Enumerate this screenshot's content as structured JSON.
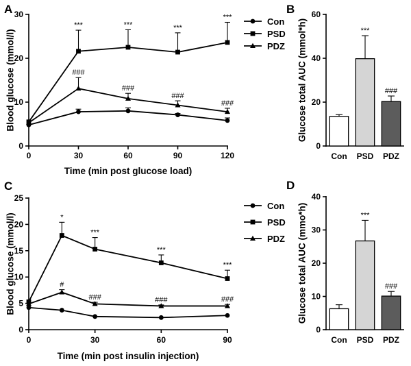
{
  "chart_data": [
    {
      "panel": "A",
      "type": "line",
      "xlabel": "Time (min post glucose load)",
      "ylabel": "Blood glucose (mmol/l)",
      "x": [
        0,
        30,
        60,
        90,
        120
      ],
      "xticks": [
        "0",
        "30",
        "60",
        "90",
        "120"
      ],
      "ylim": [
        0,
        30
      ],
      "yticks": [
        "0",
        "10",
        "20",
        "30"
      ],
      "series": [
        {
          "name": "Con",
          "marker": "circle",
          "values": [
            4.8,
            7.8,
            8.0,
            7.1,
            5.8
          ],
          "errors": [
            0,
            0.6,
            0.7,
            0.3,
            0.6
          ],
          "annotations": [
            "",
            "",
            "",
            "",
            ""
          ]
        },
        {
          "name": "PSD",
          "marker": "square",
          "values": [
            5.5,
            21.6,
            22.5,
            21.4,
            23.6
          ],
          "errors": [
            0,
            4.8,
            4.0,
            4.4,
            4.6
          ],
          "annotations": [
            "",
            "***",
            "***",
            "***",
            "***"
          ]
        },
        {
          "name": "PDZ",
          "marker": "triangle",
          "values": [
            5.3,
            13.1,
            10.8,
            9.3,
            7.8
          ],
          "errors": [
            0,
            2.5,
            1.2,
            1.0,
            0.8
          ],
          "annotations": [
            "",
            "###",
            "###",
            "###",
            "###"
          ]
        }
      ],
      "legend": [
        "Con",
        "PSD",
        "PDZ"
      ]
    },
    {
      "panel": "B",
      "type": "bar",
      "ylabel": "Glucose total AUC (mmol*h)",
      "categories": [
        "Con",
        "PSD",
        "PDZ"
      ],
      "values": [
        13.5,
        39.8,
        20.3
      ],
      "errors": [
        0.8,
        10.5,
        2.5
      ],
      "annotations": [
        "",
        "***",
        "###"
      ],
      "colors": [
        "#ffffff",
        "#d5d5d5",
        "#5c5c5c"
      ],
      "ylim": [
        0,
        60
      ],
      "yticks": [
        "0",
        "20",
        "40",
        "60"
      ]
    },
    {
      "panel": "C",
      "type": "line",
      "xlabel": "Time (min post insulin injection)",
      "ylabel": "Blood glucose (mmol/l)",
      "x": [
        0,
        15,
        30,
        60,
        90
      ],
      "xticks": [
        "0",
        "30",
        "60",
        "90"
      ],
      "xtick_values": [
        0,
        30,
        60,
        90
      ],
      "ylim": [
        0,
        25
      ],
      "yticks": [
        "0",
        "5",
        "10",
        "15",
        "20",
        "25"
      ],
      "series": [
        {
          "name": "Con",
          "marker": "circle",
          "values": [
            4.2,
            3.7,
            2.5,
            2.3,
            2.7
          ],
          "errors": [
            0,
            0,
            0,
            0,
            0
          ],
          "annotations": [
            "",
            "",
            "",
            "",
            ""
          ]
        },
        {
          "name": "PSD",
          "marker": "square",
          "values": [
            5.3,
            17.9,
            15.3,
            12.7,
            9.7
          ],
          "errors": [
            0,
            2.5,
            2.2,
            1.5,
            1.6
          ],
          "annotations": [
            "",
            "*",
            "***",
            "***",
            "***"
          ]
        },
        {
          "name": "PDZ",
          "marker": "triangle",
          "values": [
            4.9,
            7.1,
            4.9,
            4.5,
            4.5
          ],
          "errors": [
            0,
            0.5,
            0.3,
            0.2,
            0.3
          ],
          "annotations": [
            "",
            "#",
            "###",
            "###",
            "###"
          ]
        }
      ],
      "legend": [
        "Con",
        "PSD",
        "PDZ"
      ]
    },
    {
      "panel": "D",
      "type": "bar",
      "ylabel": "Glucose total AUC (mmo*h)",
      "categories": [
        "Con",
        "PSD",
        "PDZ"
      ],
      "values": [
        6.3,
        26.7,
        10.1
      ],
      "errors": [
        1.2,
        6.2,
        1.4
      ],
      "annotations": [
        "",
        "***",
        "###"
      ],
      "colors": [
        "#ffffff",
        "#d5d5d5",
        "#5c5c5c"
      ],
      "ylim": [
        0,
        40
      ],
      "yticks": [
        "0",
        "10",
        "20",
        "30",
        "40"
      ]
    }
  ]
}
